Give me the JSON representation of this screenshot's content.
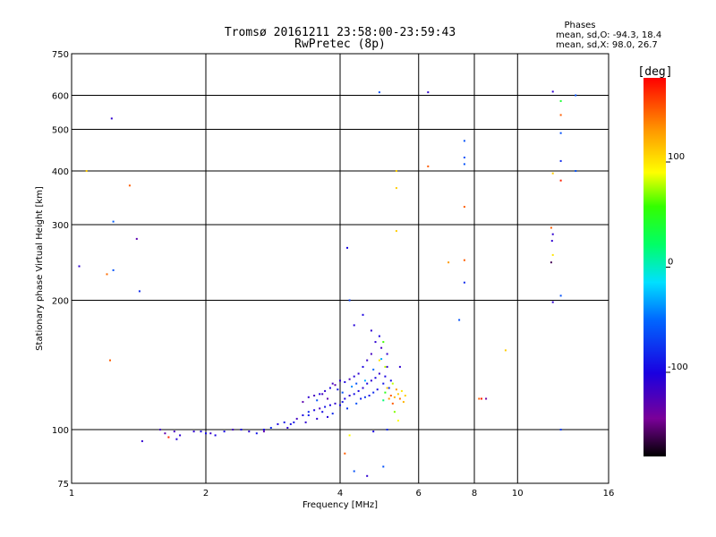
{
  "header": {
    "title_line1": "Tromsø 20161211 23:58:00-23:59:43",
    "title_line2": "RwPretec (8p)"
  },
  "stats": {
    "heading": "Phases",
    "line1": "mean, sd,O: -94.3, 18.4",
    "line2": "mean, sd,X:  98.0, 26.7"
  },
  "colorbar": {
    "label": "[deg]",
    "ticks": [
      "100",
      "0",
      "-100"
    ],
    "tick_values": [
      100,
      0,
      -100
    ],
    "range": [
      -180,
      180
    ],
    "palette": "rainbow"
  },
  "chart_data": {
    "type": "scatter",
    "xlabel": "Frequency [MHz]",
    "ylabel": "Stationary phase Virtual Height [km]",
    "x_scale": "log",
    "y_scale": "log",
    "xlim": [
      1,
      16
    ],
    "ylim": [
      75,
      750
    ],
    "x_ticks": [
      1,
      2,
      4,
      6,
      8,
      10,
      16
    ],
    "x_tick_labels": [
      "1",
      "2",
      "4",
      "6",
      "8",
      "10",
      "16"
    ],
    "y_ticks": [
      75,
      100,
      200,
      300,
      400,
      500,
      600,
      750
    ],
    "y_tick_labels": [
      "75",
      "100",
      "200",
      "300",
      "400",
      "500",
      "600",
      "750"
    ],
    "grid": true,
    "points": [
      [
        1.04,
        240,
        -110
      ],
      [
        1.08,
        400,
        110
      ],
      [
        1.2,
        230,
        145
      ],
      [
        1.23,
        530,
        -110
      ],
      [
        1.24,
        235,
        -60
      ],
      [
        1.24,
        305,
        -55
      ],
      [
        1.22,
        145,
        150
      ],
      [
        1.35,
        370,
        150
      ],
      [
        1.4,
        278,
        -130
      ],
      [
        1.42,
        210,
        -80
      ],
      [
        1.44,
        94,
        -110
      ],
      [
        1.58,
        100,
        -120
      ],
      [
        1.62,
        98,
        -130
      ],
      [
        1.65,
        96,
        170
      ],
      [
        1.7,
        99,
        -120
      ],
      [
        1.75,
        97,
        -110
      ],
      [
        1.72,
        95,
        -105
      ],
      [
        1.88,
        99,
        -110
      ],
      [
        1.95,
        99,
        -100
      ],
      [
        2.0,
        98,
        -95
      ],
      [
        2.05,
        98,
        -115
      ],
      [
        2.1,
        97,
        -100
      ],
      [
        2.2,
        99,
        -95
      ],
      [
        2.3,
        100,
        -120
      ],
      [
        2.4,
        100,
        -100
      ],
      [
        2.5,
        99,
        -110
      ],
      [
        2.6,
        98,
        -90
      ],
      [
        2.7,
        100,
        -100
      ],
      [
        2.8,
        101,
        -80
      ],
      [
        2.7,
        99,
        -130
      ],
      [
        2.9,
        103,
        -100
      ],
      [
        3.0,
        104,
        -90
      ],
      [
        3.05,
        101,
        -110
      ],
      [
        3.1,
        103,
        -95
      ],
      [
        3.2,
        106,
        -120
      ],
      [
        3.15,
        104,
        -90
      ],
      [
        3.3,
        108,
        -100
      ],
      [
        3.35,
        104,
        -110
      ],
      [
        3.4,
        110,
        -80
      ],
      [
        3.5,
        111,
        -100
      ],
      [
        3.55,
        106,
        -110
      ],
      [
        3.6,
        112,
        -120
      ],
      [
        3.65,
        110,
        -95
      ],
      [
        3.7,
        113,
        -90
      ],
      [
        3.75,
        107,
        -105
      ],
      [
        3.8,
        114,
        -100
      ],
      [
        3.85,
        109,
        -80
      ],
      [
        3.9,
        115,
        -110
      ],
      [
        4.0,
        114,
        -95
      ],
      [
        4.05,
        116,
        -90
      ],
      [
        4.1,
        118,
        -100
      ],
      [
        4.15,
        112,
        -75
      ],
      [
        4.2,
        120,
        -110
      ],
      [
        4.3,
        121,
        -95
      ],
      [
        4.35,
        115,
        -60
      ],
      [
        4.4,
        123,
        -100
      ],
      [
        4.45,
        118,
        -85
      ],
      [
        4.5,
        125,
        -110
      ],
      [
        4.55,
        119,
        -75
      ],
      [
        4.6,
        128,
        -100
      ],
      [
        4.65,
        120,
        -90
      ],
      [
        4.7,
        130,
        -110
      ],
      [
        4.75,
        122,
        -80
      ],
      [
        4.8,
        132,
        -100
      ],
      [
        4.85,
        124,
        -95
      ],
      [
        4.9,
        135,
        -110
      ],
      [
        5.0,
        128,
        -90
      ],
      [
        5.05,
        133,
        -100
      ],
      [
        5.1,
        140,
        -110
      ],
      [
        5.15,
        125,
        -80
      ],
      [
        5.2,
        130,
        -95
      ],
      [
        3.3,
        116,
        -130
      ],
      [
        3.4,
        119,
        -110
      ],
      [
        3.5,
        120,
        -120
      ],
      [
        3.6,
        121,
        -100
      ],
      [
        3.7,
        123,
        -110
      ],
      [
        3.8,
        125,
        -100
      ],
      [
        3.9,
        127,
        -130
      ],
      [
        4.0,
        130,
        -110
      ],
      [
        4.1,
        129,
        -100
      ],
      [
        4.2,
        131,
        -120
      ],
      [
        4.3,
        133,
        -105
      ],
      [
        4.4,
        135,
        -110
      ],
      [
        4.5,
        140,
        -100
      ],
      [
        4.6,
        145,
        -115
      ],
      [
        4.7,
        150,
        -120
      ],
      [
        4.8,
        160,
        -110
      ],
      [
        4.9,
        165,
        -100
      ],
      [
        4.95,
        155,
        -120
      ],
      [
        4.7,
        170,
        -110
      ],
      [
        4.5,
        185,
        -100
      ],
      [
        4.3,
        175,
        -105
      ],
      [
        4.2,
        200,
        -70
      ],
      [
        4.15,
        265,
        -100
      ],
      [
        3.4,
        108,
        -85
      ],
      [
        3.55,
        117,
        -60
      ],
      [
        3.65,
        121,
        -120
      ],
      [
        3.75,
        118,
        -130
      ],
      [
        3.85,
        128,
        -120
      ],
      [
        3.95,
        124,
        -90
      ],
      [
        4.05,
        122,
        -60
      ],
      [
        4.25,
        126,
        -40
      ],
      [
        4.35,
        128,
        -60
      ],
      [
        4.55,
        130,
        -30
      ],
      [
        4.75,
        138,
        -50
      ],
      [
        4.95,
        146,
        -30
      ],
      [
        5.0,
        117,
        20
      ],
      [
        5.05,
        122,
        50
      ],
      [
        5.1,
        125,
        110
      ],
      [
        5.15,
        118,
        130
      ],
      [
        5.2,
        120,
        150
      ],
      [
        5.25,
        115,
        150
      ],
      [
        5.3,
        119,
        120
      ],
      [
        5.35,
        124,
        130
      ],
      [
        5.4,
        121,
        110
      ],
      [
        5.45,
        118,
        140
      ],
      [
        5.5,
        123,
        100
      ],
      [
        5.55,
        116,
        120
      ],
      [
        5.6,
        120,
        110
      ],
      [
        5.1,
        150,
        -110
      ],
      [
        5.0,
        160,
        60
      ],
      [
        4.9,
        145,
        100
      ],
      [
        5.05,
        140,
        80
      ],
      [
        5.25,
        128,
        80
      ],
      [
        5.45,
        140,
        -110
      ],
      [
        5.3,
        110,
        70
      ],
      [
        5.4,
        105,
        90
      ],
      [
        5.1,
        100,
        -80
      ],
      [
        4.75,
        99,
        -100
      ],
      [
        4.1,
        88,
        150
      ],
      [
        4.3,
        80,
        -60
      ],
      [
        4.6,
        78,
        -110
      ],
      [
        5.0,
        82,
        -60
      ],
      [
        4.2,
        97,
        90
      ],
      [
        4.9,
        610,
        -60
      ],
      [
        5.35,
        400,
        110
      ],
      [
        5.35,
        365,
        110
      ],
      [
        5.35,
        290,
        110
      ],
      [
        6.3,
        610,
        -110
      ],
      [
        6.3,
        410,
        150
      ],
      [
        7.0,
        245,
        130
      ],
      [
        7.4,
        180,
        -60
      ],
      [
        7.6,
        470,
        -60
      ],
      [
        7.6,
        430,
        -60
      ],
      [
        7.6,
        415,
        -60
      ],
      [
        7.6,
        330,
        150
      ],
      [
        7.6,
        248,
        150
      ],
      [
        7.6,
        220,
        -80
      ],
      [
        8.3,
        118,
        170
      ],
      [
        8.5,
        118,
        -140
      ],
      [
        8.2,
        118,
        150
      ],
      [
        9.4,
        153,
        110
      ],
      [
        12.0,
        612,
        -110
      ],
      [
        12.0,
        395,
        110
      ],
      [
        11.9,
        295,
        150
      ],
      [
        12.0,
        285,
        -110
      ],
      [
        11.95,
        275,
        -110
      ],
      [
        12.0,
        255,
        100
      ],
      [
        11.9,
        245,
        -160
      ],
      [
        12.0,
        198,
        -110
      ],
      [
        12.5,
        582,
        40
      ],
      [
        12.5,
        540,
        150
      ],
      [
        12.5,
        490,
        -60
      ],
      [
        12.5,
        422,
        -80
      ],
      [
        12.5,
        380,
        170
      ],
      [
        12.5,
        205,
        -60
      ],
      [
        12.5,
        100,
        -70
      ],
      [
        13.5,
        600,
        -60
      ],
      [
        13.5,
        400,
        -60
      ]
    ]
  }
}
